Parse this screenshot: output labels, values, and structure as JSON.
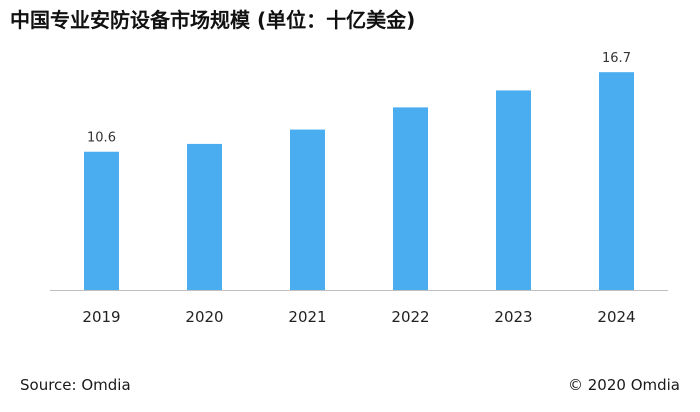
{
  "title": "中国专业安防设备市场规模 (单位：十亿美金)",
  "source": "Source: Omdia",
  "copyright": "© 2020 Omdia",
  "chart_data": {
    "type": "bar",
    "title": "中国专业安防设备市场规模 (单位：十亿美金)",
    "categories": [
      "2019",
      "2020",
      "2021",
      "2022",
      "2023",
      "2024"
    ],
    "values": [
      10.6,
      11.2,
      12.3,
      14.0,
      15.3,
      16.7
    ],
    "data_labels": [
      {
        "category": "2019",
        "text": "10.6"
      },
      {
        "category": "2024",
        "text": "16.7"
      }
    ],
    "xlabel": "",
    "ylabel": "",
    "ylim": [
      0,
      18.4
    ],
    "grid": false,
    "legend": "none",
    "bar_color": "#4AADEF",
    "axis_color": "#BFBFBF"
  }
}
